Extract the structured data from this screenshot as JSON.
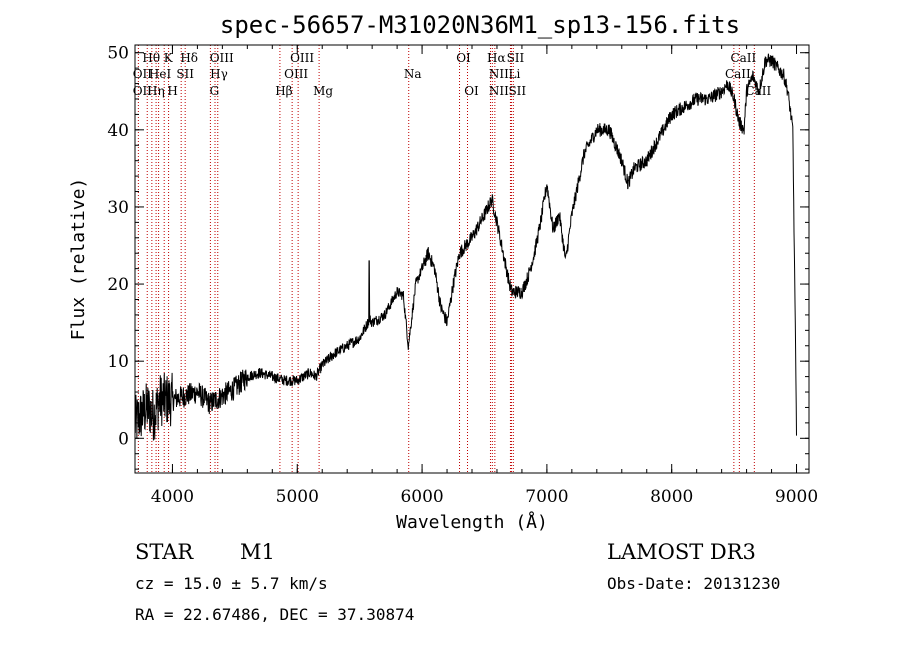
{
  "chart_data": {
    "type": "line",
    "title": "spec-56657-M31020N36M1_sp13-156.fits",
    "xlabel": "Wavelength (Å)",
    "ylabel": "Flux (relative)",
    "xlim": [
      3700,
      9100
    ],
    "ylim": [
      -4.5,
      51
    ],
    "x_ticks": [
      4000,
      5000,
      6000,
      7000,
      8000,
      9000
    ],
    "y_ticks": [
      0,
      10,
      20,
      30,
      40,
      50
    ],
    "series": [
      {
        "name": "spectrum",
        "x": [
          3700,
          3750,
          3800,
          3850,
          3900,
          3950,
          4000,
          4100,
          4200,
          4300,
          4400,
          4500,
          4600,
          4700,
          4800,
          4900,
          5000,
          5100,
          5150,
          5200,
          5300,
          5400,
          5500,
          5550,
          5580,
          5600,
          5700,
          5800,
          5850,
          5890,
          5950,
          6000,
          6050,
          6100,
          6150,
          6200,
          6250,
          6300,
          6400,
          6500,
          6560,
          6600,
          6650,
          6700,
          6720,
          6800,
          6850,
          6900,
          6950,
          7000,
          7050,
          7100,
          7150,
          7200,
          7250,
          7300,
          7400,
          7500,
          7600,
          7650,
          7700,
          7800,
          7900,
          8000,
          8100,
          8200,
          8300,
          8400,
          8450,
          8500,
          8540,
          8580,
          8600,
          8650,
          8700,
          8750,
          8800,
          8850,
          8900,
          8930,
          8970,
          8990,
          9000
        ],
        "y": [
          2,
          3,
          4,
          3,
          5,
          5,
          5,
          5.5,
          6,
          4.5,
          5.5,
          6.5,
          8,
          8.5,
          8,
          7.5,
          7.5,
          8.5,
          8,
          9.5,
          11,
          12,
          13,
          14.5,
          15.5,
          15,
          16,
          19,
          18.5,
          12,
          20,
          22,
          24,
          22,
          17,
          15,
          20,
          24,
          26,
          29,
          31,
          28,
          24,
          20,
          19,
          19,
          21,
          24,
          28,
          33,
          27,
          29,
          23,
          29,
          33,
          37,
          40,
          40,
          36,
          33,
          35,
          36,
          39,
          42,
          43,
          44,
          44,
          45,
          46,
          44,
          41,
          40,
          45,
          47,
          45,
          49,
          49,
          48,
          47,
          45,
          40,
          15,
          0
        ],
        "annotations": [
          {
            "x": 5577,
            "y": 23,
            "note": "spike"
          }
        ]
      }
    ],
    "reference_lines": [
      {
        "wavelength": 3727,
        "label": "OII"
      },
      {
        "wavelength": 3798,
        "label": "Hθ"
      },
      {
        "wavelength": 3835,
        "label": "Hη"
      },
      {
        "wavelength": 3869,
        "label": "HeI"
      },
      {
        "wavelength": 3889,
        "label": "HeI"
      },
      {
        "wavelength": 3934,
        "label": "K"
      },
      {
        "wavelength": 3969,
        "label": "H"
      },
      {
        "wavelength": 4070,
        "label": "SII"
      },
      {
        "wavelength": 4102,
        "label": "Hδ"
      },
      {
        "wavelength": 4304,
        "label": "G"
      },
      {
        "wavelength": 4341,
        "label": "Hγ"
      },
      {
        "wavelength": 4363,
        "label": "OIII"
      },
      {
        "wavelength": 4861,
        "label": "Hβ"
      },
      {
        "wavelength": 4959,
        "label": "OIII"
      },
      {
        "wavelength": 5007,
        "label": "OIII"
      },
      {
        "wavelength": 5175,
        "label": "Mg"
      },
      {
        "wavelength": 5893,
        "label": "Na"
      },
      {
        "wavelength": 6300,
        "label": "OI"
      },
      {
        "wavelength": 6364,
        "label": "OI"
      },
      {
        "wavelength": 6548,
        "label": "NII"
      },
      {
        "wavelength": 6563,
        "label": "Hα"
      },
      {
        "wavelength": 6583,
        "label": "NII"
      },
      {
        "wavelength": 6708,
        "label": "Li"
      },
      {
        "wavelength": 6716,
        "label": "SII"
      },
      {
        "wavelength": 6731,
        "label": "SII"
      },
      {
        "wavelength": 8498,
        "label": "CaII"
      },
      {
        "wavelength": 8542,
        "label": "CaII"
      },
      {
        "wavelength": 8662,
        "label": "CaII"
      }
    ],
    "line_labels": [
      {
        "text": "Hθ",
        "wavelength": 3798,
        "row": 1
      },
      {
        "text": "K",
        "wavelength": 3934,
        "row": 1
      },
      {
        "text": "Hδ",
        "wavelength": 4102,
        "row": 1
      },
      {
        "text": "OIII",
        "wavelength": 4363,
        "row": 1
      },
      {
        "text": "OIII",
        "wavelength": 5007,
        "row": 1
      },
      {
        "text": "OI",
        "wavelength": 6300,
        "row": 1
      },
      {
        "text": "Hα",
        "wavelength": 6563,
        "row": 1
      },
      {
        "text": "SII",
        "wavelength": 6716,
        "row": 1
      },
      {
        "text": "CaII",
        "wavelength": 8542,
        "row": 1
      },
      {
        "text": "OII",
        "wavelength": 3727,
        "row": 2
      },
      {
        "text": "HeI",
        "wavelength": 3869,
        "row": 2
      },
      {
        "text": "SII",
        "wavelength": 4070,
        "row": 2
      },
      {
        "text": "Hγ",
        "wavelength": 4341,
        "row": 2
      },
      {
        "text": "OIII",
        "wavelength": 4959,
        "row": 2
      },
      {
        "text": "Na",
        "wavelength": 5893,
        "row": 2
      },
      {
        "text": "NII",
        "wavelength": 6583,
        "row": 2
      },
      {
        "text": "Li",
        "wavelength": 6708,
        "row": 2
      },
      {
        "text": "CaII",
        "wavelength": 8498,
        "row": 2
      },
      {
        "text": "OII",
        "wavelength": 3727,
        "row": 3
      },
      {
        "text": "Hη",
        "wavelength": 3835,
        "row": 3
      },
      {
        "text": "H",
        "wavelength": 3969,
        "row": 3
      },
      {
        "text": "G",
        "wavelength": 4304,
        "row": 3
      },
      {
        "text": "Hβ",
        "wavelength": 4861,
        "row": 3
      },
      {
        "text": "Mg",
        "wavelength": 5175,
        "row": 3
      },
      {
        "text": "OI",
        "wavelength": 6364,
        "row": 3
      },
      {
        "text": "NII",
        "wavelength": 6583,
        "row": 3
      },
      {
        "text": "SII",
        "wavelength": 6731,
        "row": 3
      },
      {
        "text": "CaII",
        "wavelength": 8662,
        "row": 3
      }
    ]
  },
  "info": {
    "object_class": "STAR",
    "subclass": "M1",
    "survey": "LAMOST DR3",
    "cz": "cz = 15.0 ± 5.7 km/s",
    "obs_date": "Obs-Date: 20131230",
    "coords": "RA =  22.67486, DEC =  37.30874"
  },
  "colors": {
    "spectrum": "#000000",
    "reference_line": "#c00000",
    "background": "#ffffff"
  }
}
